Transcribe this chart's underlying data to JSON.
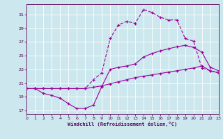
{
  "xlabel": "Windchill (Refroidissement éolien,°C)",
  "xlim": [
    0,
    23
  ],
  "ylim": [
    16.5,
    32.5
  ],
  "yticks": [
    17,
    19,
    21,
    23,
    25,
    27,
    29,
    31
  ],
  "xticks": [
    0,
    1,
    2,
    3,
    4,
    5,
    6,
    7,
    8,
    9,
    10,
    11,
    12,
    13,
    14,
    15,
    16,
    17,
    18,
    19,
    20,
    21,
    22,
    23
  ],
  "bg_color": "#cce8ee",
  "grid_color": "#aadddd",
  "line_color": "#990099",
  "line1_x": [
    0,
    1,
    2,
    3,
    4,
    5,
    6,
    7,
    8,
    9,
    10,
    11,
    12,
    13,
    14,
    15,
    16,
    17,
    18,
    19,
    20,
    21,
    22,
    23
  ],
  "line1_y": [
    20.2,
    20.2,
    20.2,
    20.2,
    20.2,
    20.2,
    20.2,
    20.2,
    20.4,
    20.6,
    20.9,
    21.2,
    21.5,
    21.8,
    22.0,
    22.2,
    22.4,
    22.6,
    22.8,
    23.0,
    23.2,
    23.5,
    22.8,
    22.5
  ],
  "line2_x": [
    0,
    1,
    2,
    3,
    4,
    5,
    6,
    7,
    8,
    9,
    10,
    11,
    12,
    13,
    14,
    15,
    16,
    17,
    18,
    19,
    20,
    21,
    22,
    23
  ],
  "line2_y": [
    20.2,
    20.2,
    19.5,
    19.2,
    18.8,
    18.0,
    17.3,
    17.3,
    17.8,
    20.5,
    23.0,
    23.3,
    23.5,
    23.8,
    24.8,
    25.3,
    25.7,
    26.0,
    26.3,
    26.5,
    26.2,
    25.5,
    23.3,
    22.8
  ],
  "line3_x": [
    0,
    1,
    2,
    3,
    4,
    5,
    6,
    7,
    8,
    9,
    10,
    11,
    12,
    13,
    14,
    15,
    16,
    17,
    18,
    19,
    20,
    21,
    22,
    23
  ],
  "line3_y": [
    20.2,
    20.2,
    20.2,
    20.2,
    20.2,
    20.2,
    20.2,
    20.2,
    21.5,
    22.5,
    27.5,
    29.5,
    30.0,
    29.7,
    31.7,
    31.3,
    30.6,
    30.2,
    30.2,
    27.5,
    27.1,
    23.2,
    22.8,
    22.5
  ]
}
